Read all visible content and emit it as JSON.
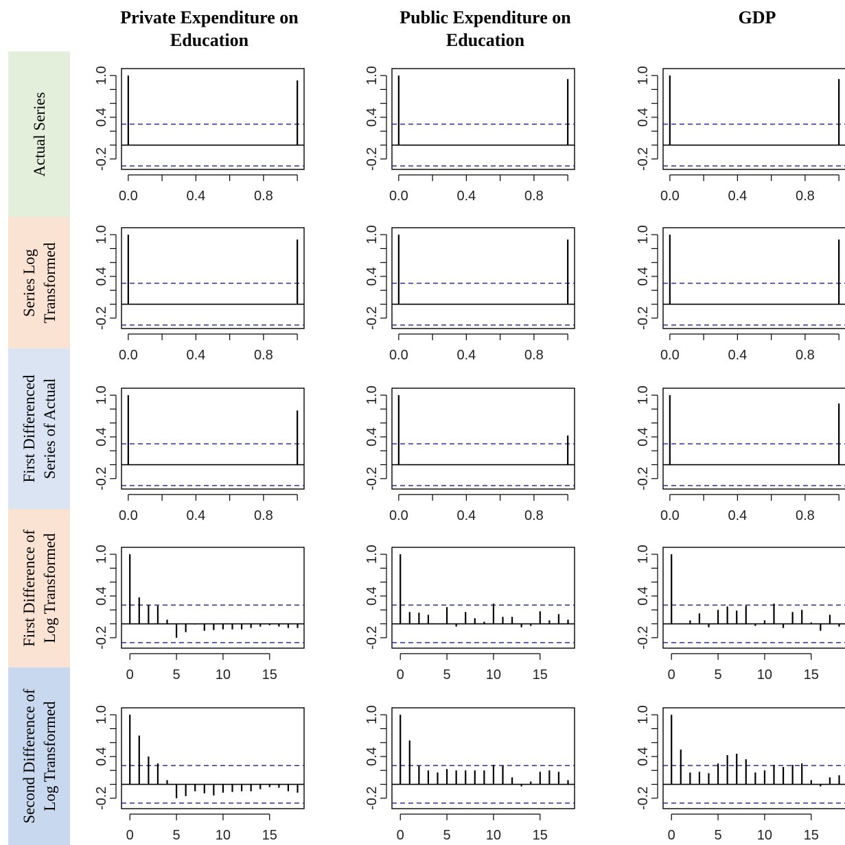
{
  "column_titles": [
    [
      "Private Expenditure on",
      "Education"
    ],
    [
      "Public Expenditure on",
      "Education"
    ],
    [
      "GDP"
    ]
  ],
  "row_labels": [
    [
      "Actual Series"
    ],
    [
      "Series Log",
      "Transformed"
    ],
    [
      "First Differenced",
      "Series of Actual"
    ],
    [
      "First Difference of",
      "Log Transformed"
    ],
    [
      "Second Difference of",
      "Log Transformed"
    ]
  ],
  "colors": {
    "row_backgrounds": [
      "#e3eedb",
      "#fbe3d4",
      "#dbe4f2",
      "#fbe3d4",
      "#c8d8ee"
    ],
    "acf_bar": "#000000",
    "confidence_band": "#1a1a99"
  },
  "chart_data": [
    {
      "type": "bar",
      "title": "Private Expenditure on Education",
      "row": "Actual Series",
      "x": [
        0,
        1
      ],
      "values": [
        1.0,
        0.93
      ],
      "ylim": [
        -0.35,
        1.1
      ],
      "xlim": [
        -0.04,
        1.04
      ],
      "yticks": [
        "-0.2",
        "0.4",
        "1.0"
      ],
      "xticks": [
        "0.0",
        "0.4",
        "0.8"
      ],
      "conf_band": [
        -0.3,
        0.3
      ]
    },
    {
      "type": "bar",
      "title": "Public Expenditure on Education",
      "row": "Actual Series",
      "x": [
        0,
        1
      ],
      "values": [
        1.0,
        0.95
      ],
      "ylim": [
        -0.35,
        1.1
      ],
      "xlim": [
        -0.04,
        1.04
      ],
      "yticks": [
        "-0.2",
        "0.4",
        "1.0"
      ],
      "xticks": [
        "0.0",
        "0.4",
        "0.8"
      ],
      "conf_band": [
        -0.3,
        0.3
      ]
    },
    {
      "type": "bar",
      "title": "GDP",
      "row": "Actual Series",
      "x": [
        0,
        1
      ],
      "values": [
        1.0,
        0.95
      ],
      "ylim": [
        -0.35,
        1.1
      ],
      "xlim": [
        -0.04,
        1.04
      ],
      "yticks": [
        "-0.2",
        "0.4",
        "1.0"
      ],
      "xticks": [
        "0.0",
        "0.4",
        "0.8"
      ],
      "conf_band": [
        -0.3,
        0.3
      ]
    },
    {
      "type": "bar",
      "title": "Private Expenditure on Education",
      "row": "Series Log Transformed",
      "x": [
        0,
        1
      ],
      "values": [
        1.0,
        0.93
      ],
      "ylim": [
        -0.35,
        1.1
      ],
      "xlim": [
        -0.04,
        1.04
      ],
      "yticks": [
        "-0.2",
        "0.4",
        "1.0"
      ],
      "xticks": [
        "0.0",
        "0.4",
        "0.8"
      ],
      "conf_band": [
        -0.3,
        0.3
      ]
    },
    {
      "type": "bar",
      "title": "Public Expenditure on Education",
      "row": "Series Log Transformed",
      "x": [
        0,
        1
      ],
      "values": [
        1.0,
        0.93
      ],
      "ylim": [
        -0.35,
        1.1
      ],
      "xlim": [
        -0.04,
        1.04
      ],
      "yticks": [
        "-0.2",
        "0.4",
        "1.0"
      ],
      "xticks": [
        "0.0",
        "0.4",
        "0.8"
      ],
      "conf_band": [
        -0.3,
        0.3
      ]
    },
    {
      "type": "bar",
      "title": "GDP",
      "row": "Series Log Transformed",
      "x": [
        0,
        1
      ],
      "values": [
        1.0,
        0.93
      ],
      "ylim": [
        -0.35,
        1.1
      ],
      "xlim": [
        -0.04,
        1.04
      ],
      "yticks": [
        "-0.2",
        "0.4",
        "1.0"
      ],
      "xticks": [
        "0.0",
        "0.4",
        "0.8"
      ],
      "conf_band": [
        -0.3,
        0.3
      ]
    },
    {
      "type": "bar",
      "title": "Private Expenditure on Education",
      "row": "First Differenced Series of Actual",
      "x": [
        0,
        1
      ],
      "values": [
        1.0,
        0.78
      ],
      "ylim": [
        -0.35,
        1.1
      ],
      "xlim": [
        -0.04,
        1.04
      ],
      "yticks": [
        "-0.2",
        "0.4",
        "1.0"
      ],
      "xticks": [
        "0.0",
        "0.4",
        "0.8"
      ],
      "conf_band": [
        -0.3,
        0.3
      ]
    },
    {
      "type": "bar",
      "title": "Public Expenditure on Education",
      "row": "First Differenced Series of Actual",
      "x": [
        0,
        1
      ],
      "values": [
        1.0,
        0.42
      ],
      "ylim": [
        -0.35,
        1.1
      ],
      "xlim": [
        -0.04,
        1.04
      ],
      "yticks": [
        "-0.2",
        "0.4",
        "1.0"
      ],
      "xticks": [
        "0.0",
        "0.4",
        "0.8"
      ],
      "conf_band": [
        -0.3,
        0.3
      ]
    },
    {
      "type": "bar",
      "title": "GDP",
      "row": "First Differenced Series of Actual",
      "x": [
        0,
        1
      ],
      "values": [
        1.0,
        0.88
      ],
      "ylim": [
        -0.35,
        1.1
      ],
      "xlim": [
        -0.04,
        1.04
      ],
      "yticks": [
        "-0.2",
        "0.4",
        "1.0"
      ],
      "xticks": [
        "0.0",
        "0.4",
        "0.8"
      ],
      "conf_band": [
        -0.3,
        0.3
      ]
    },
    {
      "type": "bar",
      "title": "Private Expenditure on Education",
      "row": "First Difference of Log Transformed",
      "x": [
        0,
        1,
        2,
        3,
        4,
        5,
        6,
        7,
        8,
        9,
        10,
        11,
        12,
        13,
        14,
        15,
        16,
        17,
        18
      ],
      "values": [
        1.0,
        0.38,
        0.27,
        0.26,
        0.06,
        -0.2,
        -0.12,
        -0.01,
        -0.1,
        -0.09,
        -0.08,
        -0.08,
        -0.08,
        -0.06,
        -0.04,
        -0.02,
        -0.04,
        -0.06,
        -0.06
      ],
      "ylim": [
        -0.35,
        1.1
      ],
      "xlim": [
        -0.9,
        18.7
      ],
      "yticks": [
        "-0.2",
        "0.4",
        "1.0"
      ],
      "xticks": [
        "0",
        "5",
        "10",
        "15"
      ],
      "conf_band": [
        -0.27,
        0.27
      ]
    },
    {
      "type": "bar",
      "title": "Public Expenditure on Education",
      "row": "First Difference of Log Transformed",
      "x": [
        0,
        1,
        2,
        3,
        4,
        5,
        6,
        7,
        8,
        9,
        10,
        11,
        12,
        13,
        14,
        15,
        16,
        17,
        18
      ],
      "values": [
        1.0,
        0.17,
        0.16,
        0.13,
        0.0,
        0.24,
        -0.04,
        0.17,
        0.08,
        0.03,
        0.29,
        0.1,
        0.1,
        -0.05,
        -0.03,
        0.18,
        0.05,
        0.14,
        0.06
      ],
      "ylim": [
        -0.35,
        1.1
      ],
      "xlim": [
        -0.9,
        18.7
      ],
      "yticks": [
        "-0.2",
        "0.4",
        "1.0"
      ],
      "xticks": [
        "0",
        "5",
        "10",
        "15"
      ],
      "conf_band": [
        -0.27,
        0.27
      ]
    },
    {
      "type": "bar",
      "title": "GDP",
      "row": "First Difference of Log Transformed",
      "x": [
        0,
        1,
        2,
        3,
        4,
        5,
        6,
        7,
        8,
        9,
        10,
        11,
        12,
        13,
        14,
        15,
        16,
        17,
        18
      ],
      "values": [
        1.0,
        0.0,
        0.05,
        0.15,
        -0.05,
        0.2,
        0.25,
        0.19,
        0.26,
        -0.03,
        0.05,
        0.29,
        -0.06,
        0.17,
        0.2,
        0.02,
        -0.1,
        0.13,
        -0.04
      ],
      "ylim": [
        -0.35,
        1.1
      ],
      "xlim": [
        -0.9,
        18.7
      ],
      "yticks": [
        "-0.2",
        "0.4",
        "1.0"
      ],
      "xticks": [
        "0",
        "5",
        "10",
        "15"
      ],
      "conf_band": [
        -0.27,
        0.27
      ]
    },
    {
      "type": "bar",
      "title": "Private Expenditure on Education",
      "row": "Second Difference of Log Transformed",
      "x": [
        0,
        1,
        2,
        3,
        4,
        5,
        6,
        7,
        8,
        9,
        10,
        11,
        12,
        13,
        14,
        15,
        16,
        17,
        18
      ],
      "values": [
        1.0,
        0.7,
        0.4,
        0.3,
        0.06,
        -0.2,
        -0.17,
        -0.1,
        -0.13,
        -0.16,
        -0.12,
        -0.11,
        -0.1,
        -0.1,
        -0.07,
        -0.04,
        -0.05,
        -0.1,
        -0.12
      ],
      "ylim": [
        -0.35,
        1.1
      ],
      "xlim": [
        -0.9,
        18.7
      ],
      "yticks": [
        "-0.2",
        "0.4",
        "1.0"
      ],
      "xticks": [
        "0",
        "5",
        "10",
        "15"
      ],
      "conf_band": [
        -0.27,
        0.27
      ]
    },
    {
      "type": "bar",
      "title": "Public Expenditure on Education",
      "row": "Second Difference of Log Transformed",
      "x": [
        0,
        1,
        2,
        3,
        4,
        5,
        6,
        7,
        8,
        9,
        10,
        11,
        12,
        13,
        14,
        15,
        16,
        17,
        18
      ],
      "values": [
        1.0,
        0.63,
        0.27,
        0.2,
        0.17,
        0.22,
        0.2,
        0.2,
        0.2,
        0.2,
        0.28,
        0.27,
        0.1,
        -0.03,
        0.04,
        0.18,
        0.2,
        0.18,
        0.06
      ],
      "ylim": [
        -0.35,
        1.1
      ],
      "xlim": [
        -0.9,
        18.7
      ],
      "yticks": [
        "-0.2",
        "0.4",
        "1.0"
      ],
      "xticks": [
        "0",
        "5",
        "10",
        "15"
      ],
      "conf_band": [
        -0.27,
        0.27
      ]
    },
    {
      "type": "bar",
      "title": "GDP",
      "row": "Second Difference of Log Transformed",
      "x": [
        0,
        1,
        2,
        3,
        4,
        5,
        6,
        7,
        8,
        9,
        10,
        11,
        12,
        13,
        14,
        15,
        16,
        17,
        18
      ],
      "values": [
        1.0,
        0.5,
        0.17,
        0.18,
        0.16,
        0.3,
        0.42,
        0.44,
        0.36,
        0.17,
        0.2,
        0.28,
        0.25,
        0.28,
        0.3,
        0.06,
        -0.03,
        0.1,
        0.13
      ],
      "ylim": [
        -0.35,
        1.1
      ],
      "xlim": [
        -0.9,
        18.7
      ],
      "yticks": [
        "-0.2",
        "0.4",
        "1.0"
      ],
      "xticks": [
        "0",
        "5",
        "10",
        "15"
      ],
      "conf_band": [
        -0.27,
        0.27
      ]
    }
  ]
}
